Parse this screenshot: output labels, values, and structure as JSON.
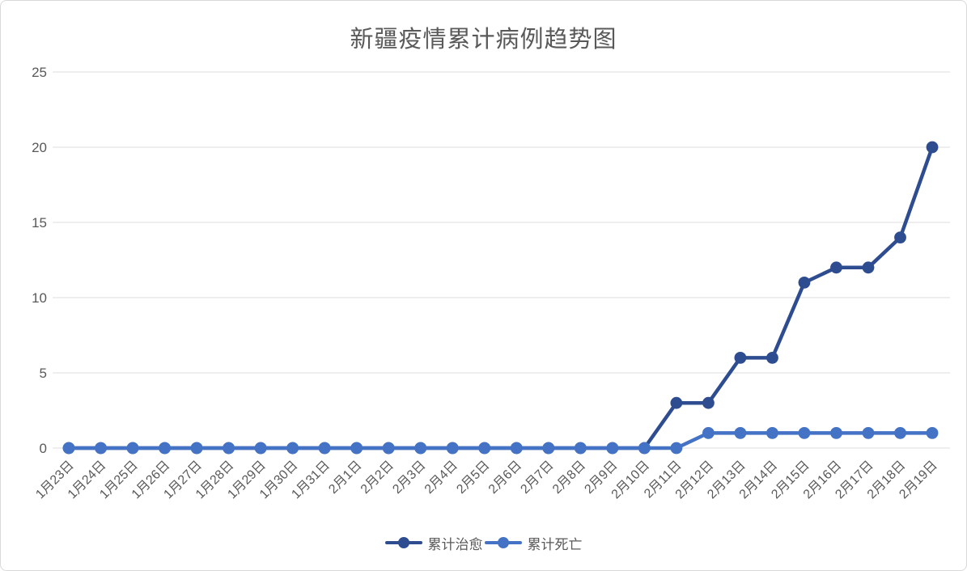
{
  "title": "新疆疫情累计病例趋势图",
  "colors": {
    "title_text": "#595959",
    "axis_text": "#595959",
    "gridline": "#e8e8e8",
    "border": "#d9d9d9",
    "background": "#ffffff",
    "series_cured": "#2e4d90",
    "series_deaths": "#4472c4"
  },
  "chart_data": {
    "type": "line",
    "title": "新疆疫情累计病例趋势图",
    "xlabel": "",
    "ylabel": "",
    "ylim": [
      0,
      25
    ],
    "yticks": [
      0,
      5,
      10,
      15,
      20,
      25
    ],
    "grid": true,
    "legend_position": "bottom",
    "marker": "circle",
    "categories": [
      "1月23日",
      "1月24日",
      "1月25日",
      "1月26日",
      "1月27日",
      "1月28日",
      "1月29日",
      "1月30日",
      "1月31日",
      "2月1日",
      "2月2日",
      "2月3日",
      "2月4日",
      "2月5日",
      "2月6日",
      "2月7日",
      "2月8日",
      "2月9日",
      "2月10日",
      "2月11日",
      "2月12日",
      "2月13日",
      "2月14日",
      "2月15日",
      "2月16日",
      "2月17日",
      "2月18日",
      "2月19日"
    ],
    "series": [
      {
        "name": "累计治愈",
        "color": "#2e4d90",
        "values": [
          0,
          0,
          0,
          0,
          0,
          0,
          0,
          0,
          0,
          0,
          0,
          0,
          0,
          0,
          0,
          0,
          0,
          0,
          0,
          3,
          3,
          6,
          6,
          11,
          12,
          12,
          14,
          20
        ]
      },
      {
        "name": "累计死亡",
        "color": "#4472c4",
        "values": [
          0,
          0,
          0,
          0,
          0,
          0,
          0,
          0,
          0,
          0,
          0,
          0,
          0,
          0,
          0,
          0,
          0,
          0,
          0,
          0,
          1,
          1,
          1,
          1,
          1,
          1,
          1,
          1
        ]
      }
    ]
  }
}
